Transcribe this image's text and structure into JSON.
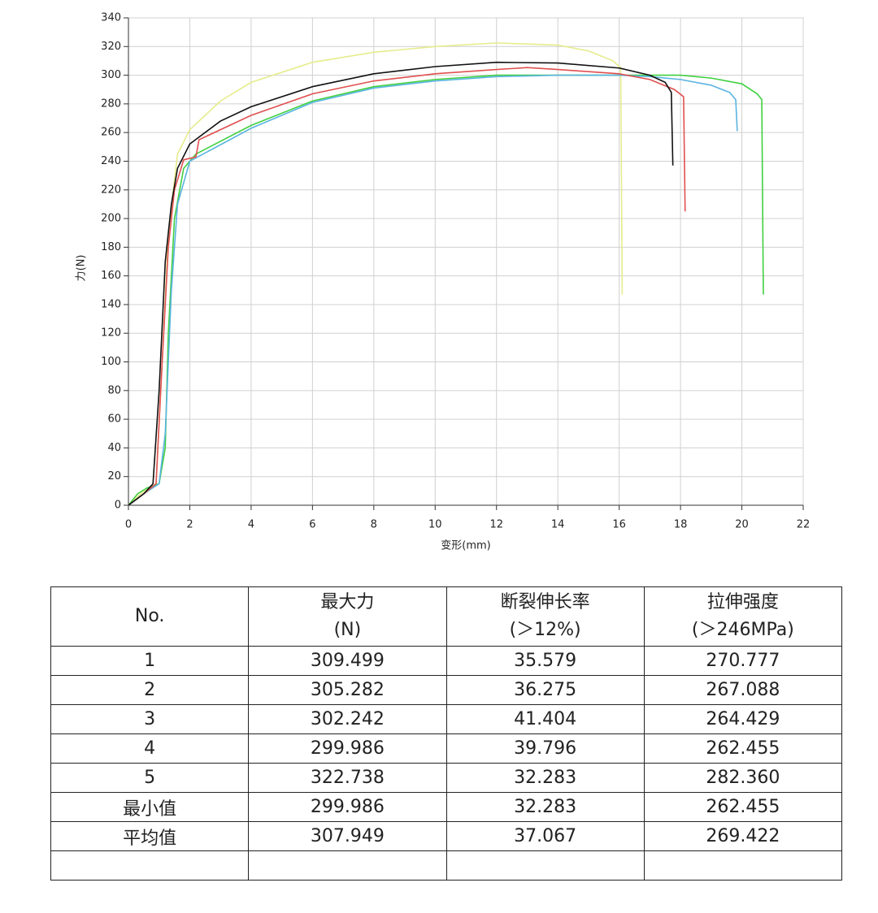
{
  "chart_data": {
    "type": "line",
    "xlabel": "变形(mm)",
    "ylabel": "力(N)",
    "xlim": [
      0,
      22
    ],
    "xticks": [
      0,
      2,
      4,
      6,
      8,
      10,
      12,
      14,
      16,
      18,
      20,
      22
    ],
    "ylim": [
      0,
      340
    ],
    "yticks": [
      0,
      20,
      40,
      60,
      80,
      100,
      120,
      140,
      160,
      180,
      200,
      220,
      240,
      260,
      280,
      300,
      320,
      340
    ],
    "grid": true,
    "series": [
      {
        "color": "#e6ec8c",
        "x": [
          0,
          0.4,
          0.9,
          1.1,
          1.3,
          1.6,
          2,
          3,
          4,
          6,
          8,
          10,
          12,
          14,
          15,
          15.8,
          16.05,
          16.1
        ],
        "values": [
          0,
          8,
          15,
          100,
          190,
          245,
          262,
          282,
          295,
          309,
          316,
          320,
          322.5,
          321,
          317,
          310,
          305,
          147
        ]
      },
      {
        "color": "#40d040",
        "x": [
          0,
          0.3,
          0.6,
          1.0,
          1.2,
          1.3,
          1.5,
          1.8,
          2.2,
          4,
          6,
          8,
          10,
          12,
          14,
          16,
          18,
          19,
          20,
          20.5,
          20.65,
          20.7
        ],
        "values": [
          0,
          8,
          12,
          15,
          40,
          120,
          200,
          235,
          245,
          265,
          282,
          292,
          297,
          300,
          300,
          300,
          300,
          298,
          294,
          287,
          283,
          147
        ]
      },
      {
        "color": "#5ab4e0",
        "x": [
          0,
          0.5,
          1.0,
          1.2,
          1.4,
          1.6,
          2,
          4,
          6,
          8,
          10,
          12,
          14,
          16,
          17,
          18,
          19,
          19.6,
          19.8,
          19.85
        ],
        "values": [
          0,
          8,
          15,
          50,
          150,
          210,
          240,
          263,
          281,
          291,
          296,
          299,
          300,
          300,
          299,
          297,
          293,
          288,
          283,
          261
        ]
      },
      {
        "color": "#e05050",
        "x": [
          0,
          0.5,
          0.9,
          1.1,
          1.3,
          1.5,
          1.8,
          2.2,
          2.3,
          4,
          6,
          8,
          10,
          12,
          13,
          14,
          16,
          17,
          17.8,
          18.1,
          18.15
        ],
        "values": [
          0,
          8,
          15,
          100,
          180,
          220,
          241,
          243,
          255,
          272,
          287,
          296,
          301,
          304,
          305.3,
          304,
          301,
          297,
          290,
          285,
          205
        ]
      },
      {
        "color": "#111111",
        "x": [
          0,
          0.5,
          0.8,
          1.0,
          1.2,
          1.4,
          1.6,
          2,
          3,
          4,
          6,
          8,
          10,
          12,
          14,
          16,
          17,
          17.5,
          17.7,
          17.75
        ],
        "values": [
          0,
          8,
          15,
          80,
          170,
          210,
          235,
          252,
          268,
          278,
          292,
          301,
          306,
          309,
          308.5,
          305,
          300,
          295,
          288,
          237
        ]
      }
    ]
  },
  "table": {
    "header": [
      [
        "No."
      ],
      [
        "最大力",
        "(N)"
      ],
      [
        "断裂伸长率",
        "(＞12%)"
      ],
      [
        "拉伸强度",
        "(＞246MPa)"
      ]
    ],
    "rows": [
      [
        "1",
        "309.499",
        "35.579",
        "270.777"
      ],
      [
        "2",
        "305.282",
        "36.275",
        "267.088"
      ],
      [
        "3",
        "302.242",
        "41.404",
        "264.429"
      ],
      [
        "4",
        "299.986",
        "39.796",
        "262.455"
      ],
      [
        "5",
        "322.738",
        "32.283",
        "282.360"
      ],
      [
        "最小值",
        "299.986",
        "32.283",
        "262.455"
      ],
      [
        "平均值",
        "307.949",
        "37.067",
        "269.422"
      ]
    ]
  }
}
